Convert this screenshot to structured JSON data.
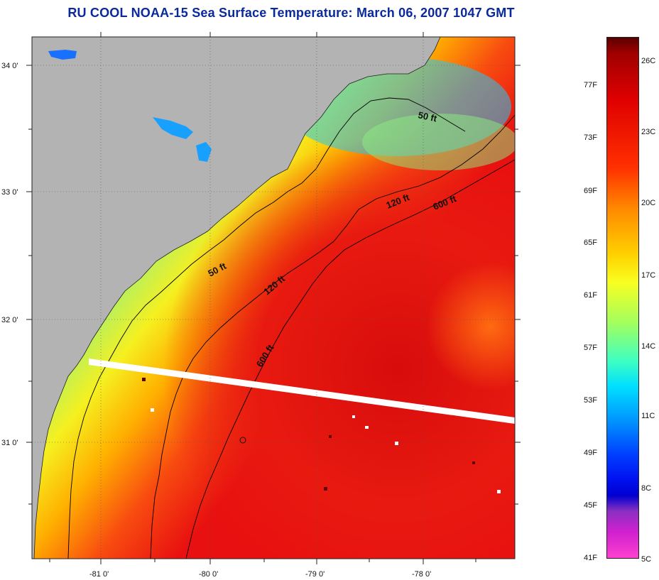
{
  "title": "RU COOL  NOAA-15  Sea Surface Temperature:  March 06, 2007 1047 GMT",
  "map": {
    "lat_labels": [
      "34 0'",
      "33 0'",
      "32 0'",
      "31 0'"
    ],
    "lon_labels": [
      "-81 0'",
      "-80 0'",
      "-79 0'",
      "-78 0'"
    ],
    "isobaths": [
      {
        "label": "50 ft",
        "depth_ft": 50
      },
      {
        "label": "50 ft",
        "depth_ft": 50
      },
      {
        "label": "120 ft",
        "depth_ft": 120
      },
      {
        "label": "120 ft",
        "depth_ft": 120
      },
      {
        "label": "600 ft",
        "depth_ft": 600
      },
      {
        "label": "600 ft",
        "depth_ft": 600
      }
    ],
    "colors": {
      "land": "#b3b3b3",
      "cloud_swath": "#ffffff",
      "warm_water": "#e81010",
      "cool_water": "#1ab4ff"
    }
  },
  "colorbar": {
    "fahrenheit_labels": [
      "77F",
      "73F",
      "69F",
      "65F",
      "61F",
      "57F",
      "53F",
      "49F",
      "45F",
      "41F"
    ],
    "celsius_labels": [
      "26C",
      "23C",
      "20C",
      "17C",
      "14C",
      "11C",
      "8C",
      "5C"
    ],
    "range_c": [
      5,
      27
    ],
    "range_f": [
      41,
      80
    ]
  }
}
